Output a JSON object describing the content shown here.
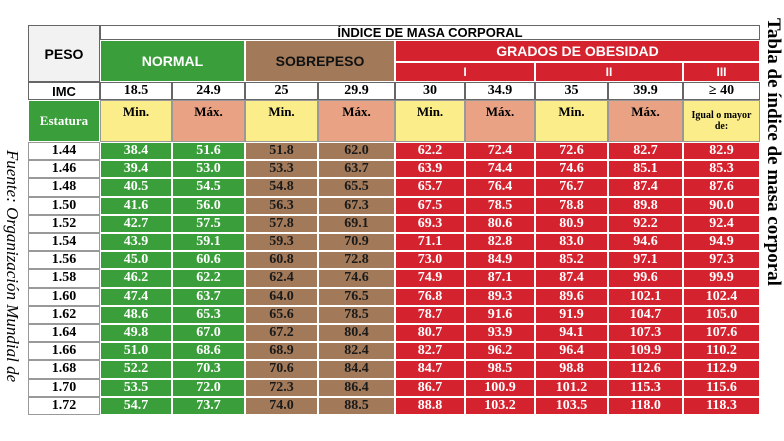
{
  "side_title": "Tabla de índice de masa corporal",
  "source": "Fuente: Organización Mundial de",
  "table": {
    "title": "ÍNDICE DE MASA CORPORAL",
    "weight_header": "PESO",
    "groups": [
      "NORMAL",
      "SOBREPESO",
      "GRADOS DE OBESIDAD"
    ],
    "obesity_grades": [
      "I",
      "II",
      "III"
    ],
    "bmi_label": "IMC",
    "bmi": [
      "18.5",
      "24.9",
      "25",
      "29.9",
      "30",
      "34.9",
      "35",
      "39.9",
      "≥ 40"
    ],
    "height_label": "Estatura",
    "bounds": [
      "Min.",
      "Máx.",
      "Min.",
      "Máx.",
      "Min.",
      "Máx.",
      "Min.",
      "Máx.",
      "Igual o mayor de:"
    ],
    "rows": [
      [
        "1.44",
        "38.4",
        "51.6",
        "51.8",
        "62.0",
        "62.2",
        "72.4",
        "72.6",
        "82.7",
        "82.9"
      ],
      [
        "1.46",
        "39.4",
        "53.0",
        "53.3",
        "63.7",
        "63.9",
        "74.4",
        "74.6",
        "85.1",
        "85.3"
      ],
      [
        "1.48",
        "40.5",
        "54.5",
        "54.8",
        "65.5",
        "65.7",
        "76.4",
        "76.7",
        "87.4",
        "87.6"
      ],
      [
        "1.50",
        "41.6",
        "56.0",
        "56.3",
        "67.3",
        "67.5",
        "78.5",
        "78.8",
        "89.8",
        "90.0"
      ],
      [
        "1.52",
        "42.7",
        "57.5",
        "57.8",
        "69.1",
        "69.3",
        "80.6",
        "80.9",
        "92.2",
        "92.4"
      ],
      [
        "1.54",
        "43.9",
        "59.1",
        "59.3",
        "70.9",
        "71.1",
        "82.8",
        "83.0",
        "94.6",
        "94.9"
      ],
      [
        "1.56",
        "45.0",
        "60.6",
        "60.8",
        "72.8",
        "73.0",
        "84.9",
        "85.2",
        "97.1",
        "97.3"
      ],
      [
        "1.58",
        "46.2",
        "62.2",
        "62.4",
        "74.6",
        "74.9",
        "87.1",
        "87.4",
        "99.6",
        "99.9"
      ],
      [
        "1.60",
        "47.4",
        "63.7",
        "64.0",
        "76.5",
        "76.8",
        "89.3",
        "89.6",
        "102.1",
        "102.4"
      ],
      [
        "1.62",
        "48.6",
        "65.3",
        "65.6",
        "78.5",
        "78.7",
        "91.6",
        "91.9",
        "104.7",
        "105.0"
      ],
      [
        "1.64",
        "49.8",
        "67.0",
        "67.2",
        "80.4",
        "80.7",
        "93.9",
        "94.1",
        "107.3",
        "107.6"
      ],
      [
        "1.66",
        "51.0",
        "68.6",
        "68.9",
        "82.4",
        "82.7",
        "96.2",
        "96.4",
        "109.9",
        "110.2"
      ],
      [
        "1.68",
        "52.2",
        "70.3",
        "70.6",
        "84.4",
        "84.7",
        "98.5",
        "98.8",
        "112.6",
        "112.9"
      ],
      [
        "1.70",
        "53.5",
        "72.0",
        "72.3",
        "86.4",
        "86.7",
        "100.9",
        "101.2",
        "115.3",
        "115.6"
      ],
      [
        "1.72",
        "54.7",
        "73.7",
        "74.0",
        "88.5",
        "88.8",
        "103.2",
        "103.5",
        "118.0",
        "118.3"
      ]
    ]
  }
}
